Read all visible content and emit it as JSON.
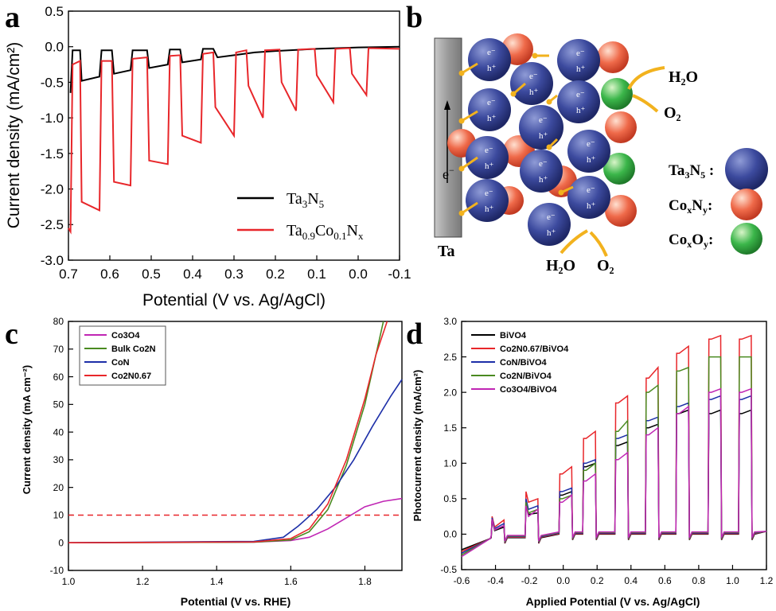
{
  "panels": {
    "a": {
      "letter": "a",
      "chart_data": {
        "type": "line",
        "xlabel": "Potential (V vs. Ag/AgCl)",
        "ylabel": "Current density (mA/cm²)",
        "xlim": [
          0.7,
          -0.1
        ],
        "ylim": [
          -3.0,
          0.5
        ],
        "xticks": [
          "0.7",
          "0.6",
          "0.5",
          "0.4",
          "0.3",
          "0.2",
          "0.1",
          "0.0",
          "-0.1"
        ],
        "xtick_values": [
          0.7,
          0.6,
          0.5,
          0.4,
          0.3,
          0.2,
          0.1,
          0.0,
          -0.1
        ],
        "yticks": [
          "0.5",
          "0.0",
          "-0.5",
          "-1.0",
          "-1.5",
          "-2.0",
          "-2.5",
          "-3.0"
        ],
        "ytick_values": [
          0.5,
          0.0,
          -0.5,
          -1.0,
          -1.5,
          -2.0,
          -2.5,
          -3.0
        ],
        "legend_placement": "bottom-right",
        "series": [
          {
            "name": "Ta3N5",
            "color": "#000000",
            "points": [
              [
                0.695,
                -0.65
              ],
              [
                0.69,
                -0.05
              ],
              [
                0.672,
                -0.05
              ],
              [
                0.668,
                -0.48
              ],
              [
                0.625,
                -0.42
              ],
              [
                0.62,
                -0.05
              ],
              [
                0.595,
                -0.05
              ],
              [
                0.59,
                -0.38
              ],
              [
                0.55,
                -0.33
              ],
              [
                0.545,
                -0.05
              ],
              [
                0.51,
                -0.05
              ],
              [
                0.505,
                -0.3
              ],
              [
                0.46,
                -0.25
              ],
              [
                0.455,
                -0.04
              ],
              [
                0.43,
                -0.04
              ],
              [
                0.425,
                -0.22
              ],
              [
                0.38,
                -0.18
              ],
              [
                0.375,
                -0.03
              ],
              [
                0.35,
                -0.03
              ],
              [
                0.34,
                -0.15
              ],
              [
                0.3,
                -0.12
              ],
              [
                0.25,
                -0.08
              ],
              [
                0.2,
                -0.06
              ],
              [
                0.1,
                -0.03
              ],
              [
                0.0,
                -0.01
              ],
              [
                -0.1,
                0.0
              ]
            ]
          },
          {
            "name": "Ta0.9Co0.1Nx",
            "color": "#e8262a",
            "points": [
              [
                0.7,
                -2.55
              ],
              [
                0.695,
                -2.6
              ],
              [
                0.69,
                -0.25
              ],
              [
                0.672,
                -0.2
              ],
              [
                0.668,
                -2.18
              ],
              [
                0.625,
                -2.3
              ],
              [
                0.62,
                -0.2
              ],
              [
                0.595,
                -0.2
              ],
              [
                0.59,
                -1.9
              ],
              [
                0.55,
                -1.95
              ],
              [
                0.545,
                -0.17
              ],
              [
                0.51,
                -0.15
              ],
              [
                0.505,
                -1.6
              ],
              [
                0.46,
                -1.65
              ],
              [
                0.455,
                -0.13
              ],
              [
                0.43,
                -0.12
              ],
              [
                0.425,
                -1.25
              ],
              [
                0.38,
                -1.35
              ],
              [
                0.375,
                -0.1
              ],
              [
                0.35,
                -0.08
              ],
              [
                0.345,
                -0.85
              ],
              [
                0.3,
                -1.25
              ],
              [
                0.295,
                -0.08
              ],
              [
                0.27,
                -0.05
              ],
              [
                0.265,
                -0.55
              ],
              [
                0.23,
                -1.0
              ],
              [
                0.225,
                -0.05
              ],
              [
                0.19,
                -0.04
              ],
              [
                0.185,
                -0.5
              ],
              [
                0.15,
                -0.9
              ],
              [
                0.145,
                -0.04
              ],
              [
                0.105,
                -0.03
              ],
              [
                0.1,
                -0.4
              ],
              [
                0.06,
                -0.78
              ],
              [
                0.055,
                -0.03
              ],
              [
                0.02,
                -0.02
              ],
              [
                0.015,
                -0.38
              ],
              [
                -0.02,
                -0.68
              ],
              [
                -0.025,
                -0.02
              ],
              [
                -0.1,
                -0.03
              ]
            ]
          }
        ]
      }
    },
    "b": {
      "letter": "b",
      "labels": {
        "electrode": "Ta",
        "electron": "e",
        "h2o_top": "H₂O",
        "o2_top": "O₂",
        "h2o_bottom": "H₂O",
        "o2_bottom": "O₂",
        "electron_sym": "e⁻",
        "hole_sym": "h⁺"
      },
      "legend": [
        {
          "label_main": "Ta",
          "sub1": "3",
          "mid": "N",
          "sub2": "5",
          "suffix": " :",
          "color": "#3c4a9e"
        },
        {
          "label_main": "Co",
          "sub1": "x",
          "mid": "N",
          "sub2": "y",
          "suffix": ":",
          "color": "#ef6a4a"
        },
        {
          "label_main": "Co",
          "sub1": "x",
          "mid": "O",
          "sub2": "y",
          "suffix": ":",
          "color": "#3bb64a"
        }
      ]
    },
    "c": {
      "letter": "c",
      "chart_data": {
        "type": "line",
        "xlabel": "Potential (V vs. RHE)",
        "ylabel": "Current density (mA cm⁻²)",
        "xlim": [
          1.0,
          1.9
        ],
        "ylim": [
          -10,
          80
        ],
        "xticks": [
          "1.0",
          "1.2",
          "1.4",
          "1.6",
          "1.8"
        ],
        "xtick_values": [
          1.0,
          1.2,
          1.4,
          1.6,
          1.8
        ],
        "yticks": [
          "80",
          "70",
          "60",
          "50",
          "40",
          "30",
          "20",
          "10",
          "0",
          "-10"
        ],
        "ytick_values": [
          80,
          70,
          60,
          50,
          40,
          30,
          20,
          10,
          0,
          -10
        ],
        "reference_line": 10,
        "legend_placement": "top-left",
        "series": [
          {
            "name": "Co3O4",
            "color": "#c026b4",
            "points": [
              [
                1.0,
                0
              ],
              [
                1.5,
                0.2
              ],
              [
                1.6,
                0.8
              ],
              [
                1.65,
                2
              ],
              [
                1.7,
                5
              ],
              [
                1.75,
                9
              ],
              [
                1.8,
                13
              ],
              [
                1.85,
                15
              ],
              [
                1.9,
                16
              ]
            ]
          },
          {
            "name": "Bulk Co2N",
            "color": "#4a8a20",
            "points": [
              [
                1.0,
                0
              ],
              [
                1.5,
                0.2
              ],
              [
                1.6,
                1
              ],
              [
                1.65,
                4
              ],
              [
                1.7,
                12
              ],
              [
                1.75,
                28
              ],
              [
                1.8,
                50
              ],
              [
                1.83,
                68
              ],
              [
                1.85,
                80
              ]
            ]
          },
          {
            "name": "CoN",
            "color": "#1d2fa8",
            "points": [
              [
                1.0,
                0
              ],
              [
                1.5,
                0.5
              ],
              [
                1.58,
                2
              ],
              [
                1.62,
                6
              ],
              [
                1.67,
                12
              ],
              [
                1.72,
                20
              ],
              [
                1.77,
                30
              ],
              [
                1.82,
                42
              ],
              [
                1.87,
                53
              ],
              [
                1.9,
                59
              ]
            ]
          },
          {
            "name": "Co2N0.67",
            "color": "#e8262a",
            "points": [
              [
                1.0,
                0
              ],
              [
                1.5,
                0.3
              ],
              [
                1.6,
                1.5
              ],
              [
                1.65,
                5
              ],
              [
                1.7,
                14
              ],
              [
                1.75,
                30
              ],
              [
                1.8,
                52
              ],
              [
                1.83,
                68
              ],
              [
                1.86,
                80
              ]
            ]
          }
        ]
      }
    },
    "d": {
      "letter": "d",
      "chart_data": {
        "type": "line",
        "xlabel": "Applied Potential (V vs. Ag/AgCl)",
        "ylabel": "Photocurrent density (mA/cm²)",
        "xlim": [
          -0.6,
          1.2
        ],
        "ylim": [
          -0.5,
          3.0
        ],
        "xticks": [
          "-0.6",
          "-0.4",
          "-0.2",
          "0.0",
          "0.2",
          "0.4",
          "0.6",
          "0.8",
          "1.0",
          "1.2"
        ],
        "xtick_values": [
          -0.6,
          -0.4,
          -0.2,
          0.0,
          0.2,
          0.4,
          0.6,
          0.8,
          1.0,
          1.2
        ],
        "yticks": [
          "3.0",
          "2.5",
          "2.0",
          "1.5",
          "1.0",
          "0.5",
          "0.0",
          "-0.5"
        ],
        "ytick_values": [
          3.0,
          2.5,
          2.0,
          1.5,
          1.0,
          0.5,
          0.0,
          -0.5
        ],
        "legend_placement": "top-left",
        "series": [
          {
            "name": "BiVO4",
            "color": "#000000",
            "peaks": [
              0.05,
              0.1,
              0.28,
              0.3,
              0.55,
              0.6,
              0.95,
              1.0,
              1.25,
              1.3,
              1.5,
              1.55,
              1.7,
              1.75
            ]
          },
          {
            "name": "Co2N0.67/BiVO4",
            "color": "#e8262a",
            "peaks": [
              0.1,
              0.2,
              0.45,
              0.5,
              0.85,
              0.95,
              1.35,
              1.45,
              1.85,
              1.95,
              2.2,
              2.35,
              2.55,
              2.65,
              2.75,
              2.8
            ]
          },
          {
            "name": "CoN/BiVO4",
            "color": "#1d2fa8",
            "peaks": [
              0.08,
              0.15,
              0.35,
              0.4,
              0.6,
              0.65,
              1.0,
              1.05,
              1.35,
              1.4,
              1.6,
              1.65,
              1.8,
              1.85,
              1.9,
              1.95
            ]
          },
          {
            "name": "Co2N/BiVO4",
            "color": "#4a8a20",
            "peaks": [
              0.06,
              0.12,
              0.3,
              0.35,
              0.5,
              0.55,
              0.9,
              1.0,
              1.45,
              1.6,
              2.0,
              2.1,
              2.3,
              2.35,
              2.5,
              2.5
            ]
          },
          {
            "name": "Co3O4/BiVO4",
            "color": "#c026b4",
            "peaks": [
              0.06,
              0.12,
              0.25,
              0.35,
              0.45,
              0.55,
              0.75,
              0.85,
              1.05,
              1.15,
              1.4,
              1.5,
              1.7,
              1.8,
              2.0,
              2.05
            ]
          }
        ]
      }
    }
  }
}
